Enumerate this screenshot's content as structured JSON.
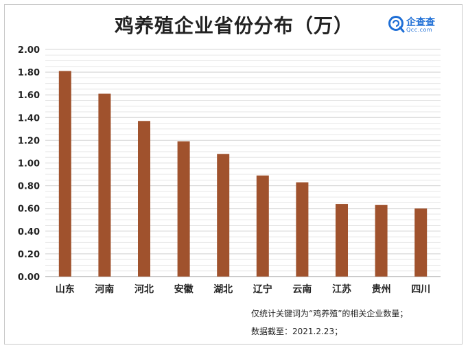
{
  "title": "鸡养殖企业省份分布（万）",
  "logo": {
    "name": "企查查",
    "domain": "Qcc.com",
    "icon": "qcc-logo-icon",
    "color": "#1f6fd6"
  },
  "notes": {
    "line1": "仅统计关键词为“鸡养殖”的相关企业数量；",
    "line2": "数据截至：2021.2.23；"
  },
  "chart_data": {
    "type": "bar",
    "title": "鸡养殖企业省份分布（万）",
    "categories": [
      "山东",
      "河南",
      "河北",
      "安徽",
      "湖北",
      "辽宁",
      "云南",
      "江苏",
      "贵州",
      "四川"
    ],
    "values": [
      1.81,
      1.61,
      1.37,
      1.19,
      1.08,
      0.89,
      0.83,
      0.64,
      0.63,
      0.6
    ],
    "yticks": [
      "0.00",
      "0.20",
      "0.40",
      "0.60",
      "0.80",
      "1.00",
      "1.20",
      "1.40",
      "1.60",
      "1.80",
      "2.00"
    ],
    "ylim": [
      0,
      2.0
    ],
    "grid": true,
    "legend": "none",
    "bar_color": "#a0522d"
  }
}
